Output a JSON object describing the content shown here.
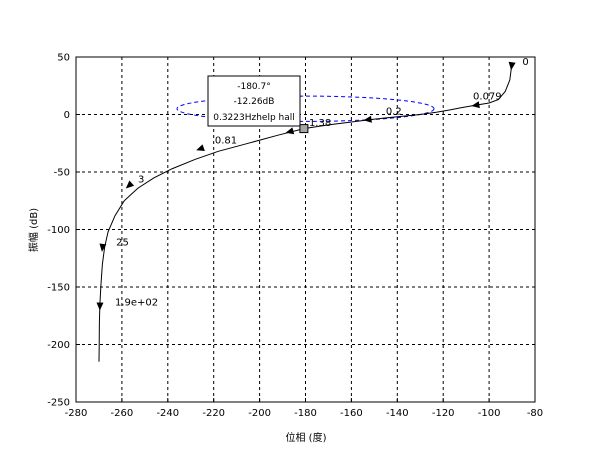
{
  "chart_data": {
    "type": "line",
    "title": "",
    "xlabel": "位相 (度)",
    "ylabel": "振幅 (dB)",
    "xlim": [
      -280,
      -80
    ],
    "ylim": [
      -250,
      50
    ],
    "grid": true,
    "x_ticks": [
      "-280",
      "-260",
      "-240",
      "-220",
      "-200",
      "-180",
      "-160",
      "-140",
      "-120",
      "-100",
      "-80"
    ],
    "y_ticks": [
      "50",
      "0",
      "-50",
      "-100",
      "-150",
      "-200",
      "-250"
    ],
    "series": [
      {
        "x": [
          -90.2,
          -91,
          -93,
          -96,
          -100,
          -106,
          -112,
          -117,
          -123,
          -130,
          -140,
          -150,
          -160,
          -170,
          -180.7,
          -192,
          -205,
          -218,
          -228,
          -238,
          -246,
          -253,
          -259,
          -263,
          -266,
          -267.5,
          -268.5,
          -269.2,
          -269.6,
          -269.8,
          -269.9,
          -270
        ],
        "y": [
          42,
          30,
          20,
          13,
          10,
          8,
          6,
          4,
          2,
          0,
          -2,
          -4,
          -6.5,
          -9,
          -12.26,
          -18,
          -25,
          -32,
          -39,
          -47,
          -55,
          -64,
          -75,
          -88,
          -102,
          -115,
          -130,
          -150,
          -165,
          -180,
          -200,
          -215
        ]
      }
    ],
    "frequency_labels": [
      {
        "text": "0",
        "x": -85.5,
        "y": 43
      },
      {
        "text": "0.079",
        "x": -107,
        "y": 13
      },
      {
        "text": "0.2",
        "x": -145,
        "y": 0
      },
      {
        "text": "1.38",
        "x": -178.5,
        "y": -10
      },
      {
        "text": "0.81",
        "x": -219.5,
        "y": -25
      },
      {
        "text": "3",
        "x": -253,
        "y": -59
      },
      {
        "text": "25",
        "x": -262.5,
        "y": -114
      },
      {
        "text": "1.9e+02",
        "x": -263,
        "y": -166
      }
    ],
    "arrow_points": [
      {
        "x": -90.2,
        "y": 42,
        "dir": "start"
      },
      {
        "x": -106,
        "y": 8
      },
      {
        "x": -153,
        "y": -4.5
      },
      {
        "x": -187,
        "y": -15
      },
      {
        "x": -226,
        "y": -30
      },
      {
        "x": -257,
        "y": -62
      },
      {
        "x": -268.5,
        "y": -116
      },
      {
        "x": -269.6,
        "y": -167
      }
    ],
    "marker": {
      "x": -180.7,
      "y": -12.26
    },
    "ellipse": {
      "cx": -180,
      "cy": 5,
      "rx": 56,
      "ry": 11
    },
    "datatip": {
      "lines": [
        "-180.7°",
        "-12.26dB",
        "0.3223Hzhelp hall"
      ]
    }
  }
}
